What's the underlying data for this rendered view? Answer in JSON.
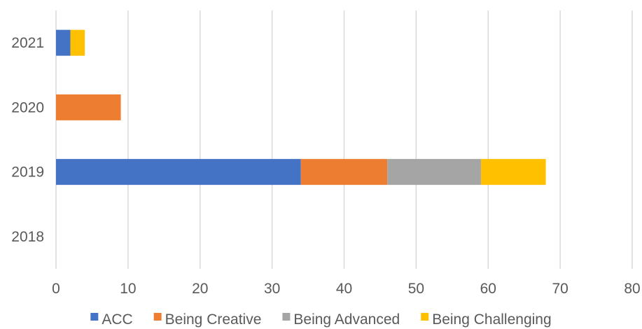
{
  "chart_data": {
    "type": "bar",
    "orientation": "horizontal",
    "stacked": true,
    "categories": [
      "2018",
      "2019",
      "2020",
      "2021"
    ],
    "series": [
      {
        "name": "ACC",
        "values": [
          0,
          34,
          0,
          2
        ],
        "color": "#4472C4"
      },
      {
        "name": "Being Creative",
        "values": [
          0,
          12,
          9,
          0
        ],
        "color": "#ED7D31"
      },
      {
        "name": "Being Advanced",
        "values": [
          0,
          13,
          0,
          0
        ],
        "color": "#A5A5A5"
      },
      {
        "name": "Being Challenging",
        "values": [
          0,
          9,
          0,
          2
        ],
        "color": "#FFC000"
      }
    ],
    "xticks": [
      "0",
      "10",
      "20",
      "30",
      "40",
      "50",
      "60",
      "70",
      "80"
    ],
    "xlim": [
      0,
      80
    ],
    "grid": true,
    "gridline_color": "#D9D9D9",
    "legend_position": "bottom"
  }
}
